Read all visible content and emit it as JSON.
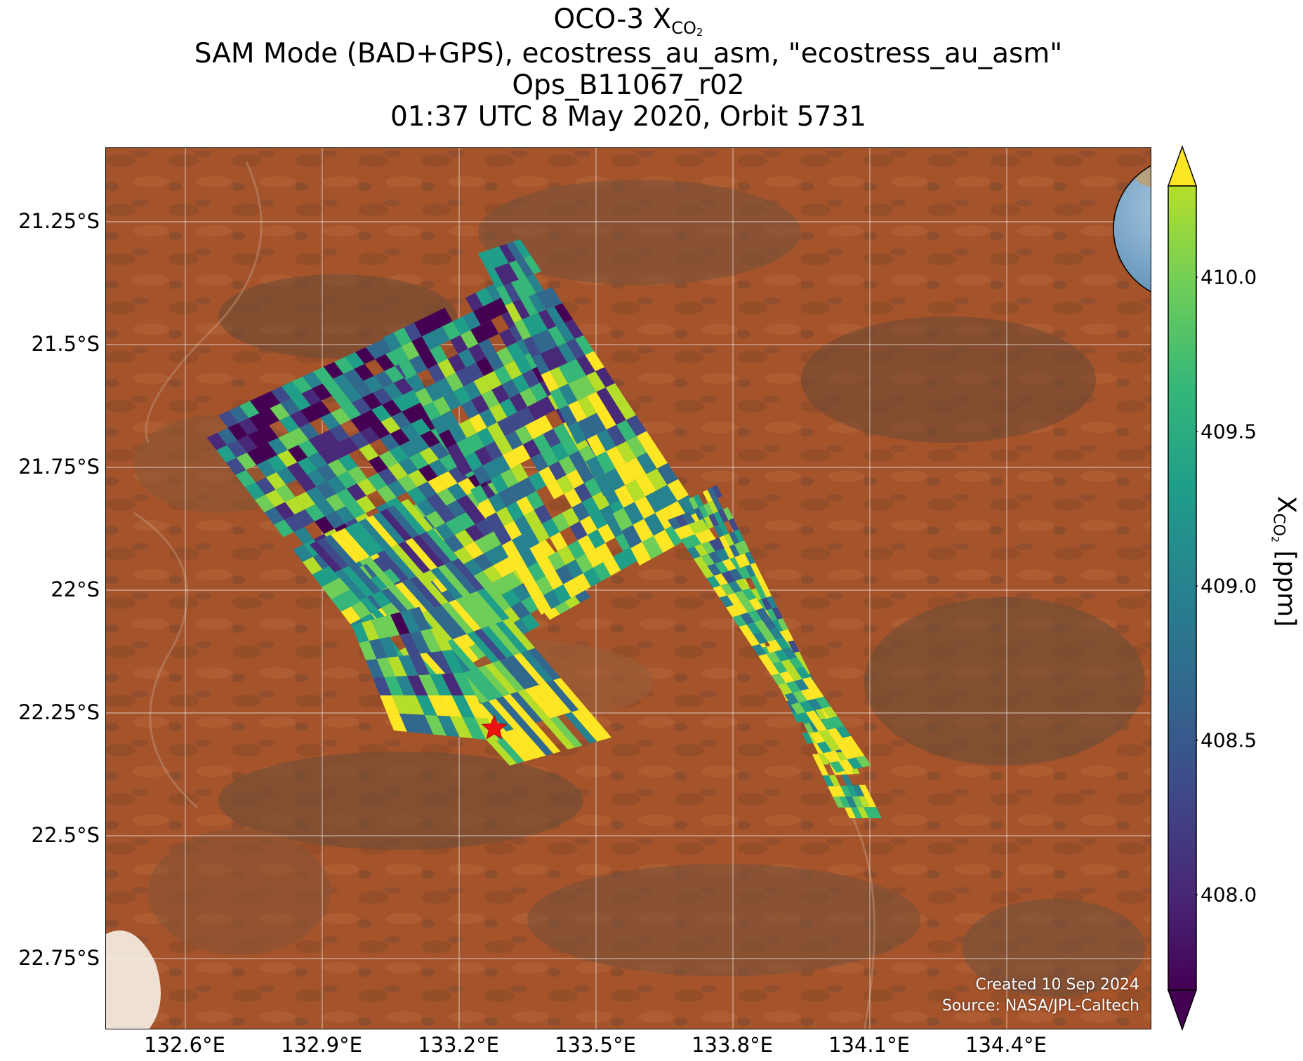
{
  "title": {
    "base": "OCO-3 X",
    "sub_co": "CO",
    "sub_2": "2",
    "line2": "SAM Mode (BAD+GPS), ecostress_au_asm, \"ecostress_au_asm\"",
    "line3": "Ops_B11067_r02",
    "line4": "01:37 UTC 8 May 2020, Orbit 5731"
  },
  "map": {
    "lat_ticks": [
      "21.25°S",
      "21.5°S",
      "21.75°S",
      "22°S",
      "22.25°S",
      "22.5°S",
      "22.75°S"
    ],
    "lon_ticks": [
      "132.6°E",
      "132.9°E",
      "133.2°E",
      "133.5°E",
      "133.8°E",
      "134.1°E",
      "134.4°E"
    ],
    "target_marker": "red-star",
    "credit_created": "Created 10 Sep 2024",
    "credit_source": "Source: NASA/JPL-Caltech"
  },
  "colorbar": {
    "ticks": [
      "410.0",
      "409.5",
      "409.0",
      "408.5",
      "408.0"
    ],
    "label_base": "X",
    "label_sub_co": "CO",
    "label_sub_2": "2",
    "label_unit": " [ppm]",
    "colormap": "viridis",
    "range": [
      407.75,
      410.25
    ],
    "extend": "both"
  },
  "inset": {
    "type": "orthographic-globe",
    "marker": "red-star-central-australia"
  }
}
